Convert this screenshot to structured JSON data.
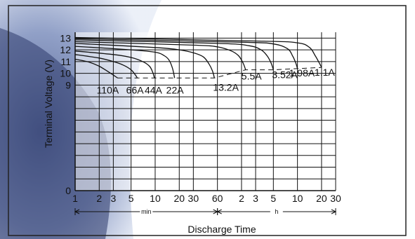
{
  "chart_data": {
    "type": "line",
    "title": "",
    "xlabel": "Discharge Time",
    "ylabel": "Terminal Voltage (V)",
    "x_scale": "log",
    "x_unit": "minutes",
    "xlim_minutes": [
      1,
      1800
    ],
    "ylim": [
      0,
      13.5
    ],
    "y_ticks": [
      0,
      9,
      10,
      11,
      12,
      13
    ],
    "x_ticks": [
      {
        "minutes": 1,
        "label": "1"
      },
      {
        "minutes": 2,
        "label": "2"
      },
      {
        "minutes": 3,
        "label": "3"
      },
      {
        "minutes": 5,
        "label": "5"
      },
      {
        "minutes": 10,
        "label": "10"
      },
      {
        "minutes": 20,
        "label": "20"
      },
      {
        "minutes": 30,
        "label": "30"
      },
      {
        "minutes": 60,
        "label": "60"
      },
      {
        "minutes": 120,
        "label": "2"
      },
      {
        "minutes": 180,
        "label": "3"
      },
      {
        "minutes": 300,
        "label": "5"
      },
      {
        "minutes": 600,
        "label": "10"
      },
      {
        "minutes": 1200,
        "label": "20"
      },
      {
        "minutes": 1800,
        "label": "30"
      }
    ],
    "range_labels": {
      "min": "min",
      "h": "h"
    },
    "grid": true,
    "series": [
      {
        "name": "110A",
        "points": [
          [
            1,
            11.2
          ],
          [
            1.5,
            10.95
          ],
          [
            2,
            10.6
          ],
          [
            2.5,
            10.2
          ],
          [
            3,
            9.85
          ],
          [
            3.4,
            9.6
          ]
        ]
      },
      {
        "name": "66A",
        "points": [
          [
            1,
            11.6
          ],
          [
            2,
            11.3
          ],
          [
            3,
            11.0
          ],
          [
            4,
            10.7
          ],
          [
            5,
            10.3
          ],
          [
            5.6,
            9.9
          ],
          [
            6,
            9.6
          ]
        ]
      },
      {
        "name": "44A",
        "points": [
          [
            1,
            11.9
          ],
          [
            3,
            11.6
          ],
          [
            5,
            11.35
          ],
          [
            7,
            11.0
          ],
          [
            8.5,
            10.6
          ],
          [
            9.3,
            10.1
          ],
          [
            9.8,
            9.6
          ]
        ]
      },
      {
        "name": "22A",
        "points": [
          [
            1,
            12.3
          ],
          [
            5,
            12.0
          ],
          [
            10,
            11.8
          ],
          [
            13,
            11.5
          ],
          [
            15,
            11.1
          ],
          [
            16.5,
            10.4
          ],
          [
            17.5,
            9.6
          ]
        ]
      },
      {
        "name": "13.2A",
        "points": [
          [
            1,
            12.55
          ],
          [
            10,
            12.2
          ],
          [
            20,
            12.0
          ],
          [
            30,
            11.75
          ],
          [
            40,
            11.4
          ],
          [
            47,
            10.8
          ],
          [
            52,
            10.2
          ],
          [
            55,
            9.6
          ]
        ]
      },
      {
        "name": "5.5A",
        "points": [
          [
            1,
            12.7
          ],
          [
            30,
            12.4
          ],
          [
            60,
            12.25
          ],
          [
            90,
            11.9
          ],
          [
            110,
            11.5
          ],
          [
            125,
            10.9
          ],
          [
            135,
            10.3
          ]
        ]
      },
      {
        "name": "3.52A",
        "points": [
          [
            1,
            12.85
          ],
          [
            60,
            12.55
          ],
          [
            150,
            12.35
          ],
          [
            210,
            12.0
          ],
          [
            250,
            11.5
          ],
          [
            280,
            10.9
          ],
          [
            300,
            10.3
          ]
        ]
      },
      {
        "name": "1.98A",
        "points": [
          [
            1,
            12.95
          ],
          [
            120,
            12.65
          ],
          [
            300,
            12.5
          ],
          [
            450,
            12.1
          ],
          [
            520,
            11.5
          ],
          [
            570,
            10.9
          ],
          [
            600,
            10.4
          ]
        ]
      },
      {
        "name": "1.1A",
        "points": [
          [
            1,
            13.05
          ],
          [
            200,
            12.75
          ],
          [
            600,
            12.6
          ],
          [
            850,
            12.2
          ],
          [
            1000,
            11.5
          ],
          [
            1120,
            10.9
          ],
          [
            1200,
            10.5
          ]
        ]
      }
    ]
  }
}
